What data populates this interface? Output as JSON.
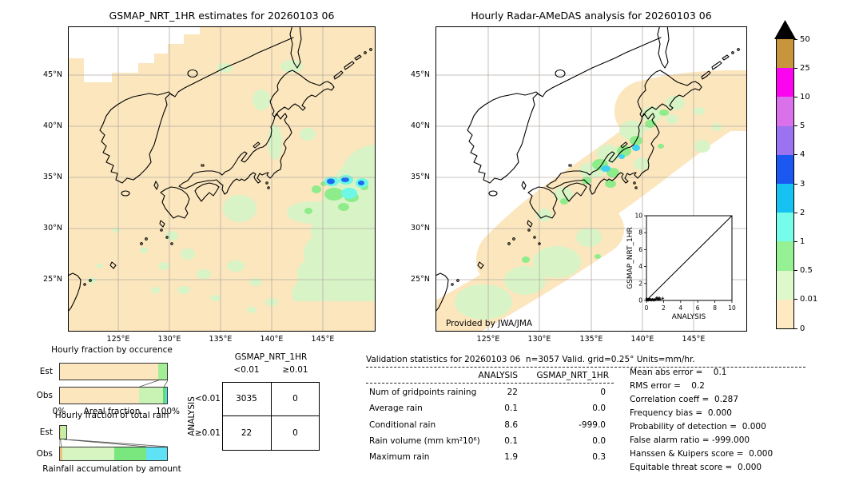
{
  "figure": {
    "provided_by": "Provided by JWA/JMA",
    "units": "mm/hr"
  },
  "chart_data": [
    {
      "id": "map_gsmap",
      "type": "map",
      "title": "GSMAP_NRT_1HR estimates for 20260103 06",
      "lon_ticks": [
        "125°E",
        "130°E",
        "135°E",
        "140°E",
        "145°E"
      ],
      "lat_ticks": [
        "45°N",
        "40°N",
        "35°N",
        "30°N",
        "25°N"
      ],
      "units": "mm/hr",
      "background_value_color": "#fbe6bd",
      "notes": "Precipitation estimate map over Japan; mostly 0–0.01 mm/hr (peach) with scattered 0.01–0.5 patches and a band of 1–4 mm/hr cells near 35N,145-147E"
    },
    {
      "id": "map_radar",
      "type": "map",
      "title": "Hourly Radar-AMeDAS analysis for 20260103 06",
      "credit": "Provided by JWA/JMA",
      "lon_ticks": [
        "125°E",
        "130°E",
        "135°E",
        "140°E",
        "145°E"
      ],
      "lat_ticks": [
        "45°N",
        "40°N",
        "35°N",
        "30°N",
        "25°N"
      ],
      "units": "mm/hr",
      "notes": "Radar analysis coverage blobs (0-0.01 peach) along Japan with 0.01-1 green cores and small 1-3 mm/hr cyan cells on the Japan Sea coast"
    },
    {
      "id": "colorbar",
      "type": "colorbar",
      "units": "mm/hr",
      "tick_labels": [
        "50",
        "25",
        "10",
        "5",
        "4",
        "3",
        "2",
        "1",
        "0.5",
        "0.01",
        "0"
      ],
      "segment_colors": [
        "#c7953c",
        "#fb04f0",
        "#da70ea",
        "#9b72ef",
        "#1b57f1",
        "#15c2f2",
        "#76fde9",
        "#95f193",
        "#ddf8ca",
        "#fdeac3"
      ],
      "overflow_arrow_color": "#000000"
    },
    {
      "id": "occurrence",
      "type": "bar",
      "title": "Hourly fraction by occurence",
      "x_left_label": "0%",
      "x_axis_label": "Areal fraction",
      "x_right_label": "100%",
      "rows": [
        {
          "label": "Est",
          "segments": [
            {
              "level": "0-0.01",
              "color": "#fbe6bd",
              "fraction": 0.915
            },
            {
              "level": "0.01-0.5",
              "color": "#a2ee95",
              "fraction": 0.085
            }
          ]
        },
        {
          "label": "Obs",
          "segments": [
            {
              "level": "0-0.01",
              "color": "#fbe6bd",
              "fraction": 0.74
            },
            {
              "level": "0.01-0.5",
              "color": "#c9f2b5",
              "fraction": 0.225
            },
            {
              "level": "0.5-1",
              "color": "#5fdd66",
              "fraction": 0.022
            },
            {
              "level": "1-2",
              "color": "#55dcf2",
              "fraction": 0.013
            }
          ]
        }
      ],
      "connectors": [
        [
          0.915,
          0.74
        ],
        [
          1.0,
          0.965
        ]
      ]
    },
    {
      "id": "totalrain",
      "type": "bar",
      "title": "Hourly fraction of total rain",
      "x_axis_label": "Rainfall accumulation by amount",
      "rows": [
        {
          "label": "Est",
          "segments": [
            {
              "level": "0-0.01",
              "color": "#eec17e",
              "fraction": 0.012
            },
            {
              "level": "0.01-0.5",
              "color": "#c3f0a5",
              "fraction": 0.062
            }
          ]
        },
        {
          "label": "Obs",
          "segments": [
            {
              "level": "0-0.01",
              "color": "#eec17e",
              "fraction": 0.02
            },
            {
              "level": "0.01-0.5",
              "color": "#d6f5c1",
              "fraction": 0.49
            },
            {
              "level": "0.5-1",
              "color": "#79e77d",
              "fraction": 0.295
            },
            {
              "level": "1-2",
              "color": "#5fe2f5",
              "fraction": 0.195
            }
          ]
        }
      ],
      "connectors": [
        [
          0.074,
          1.0
        ],
        [
          0.045,
          0.805
        ],
        [
          0.012,
          0.02
        ],
        [
          0.0,
          0.0
        ]
      ]
    },
    {
      "id": "contingency",
      "type": "table",
      "col_group": "GSMAP_NRT_1HR",
      "row_group": "ANALYSIS",
      "col_labels": [
        "<0.01",
        "≥0.01"
      ],
      "row_labels": [
        "<0.01",
        "≥0.01"
      ],
      "values": [
        [
          "3035",
          "0"
        ],
        [
          "22",
          "0"
        ]
      ]
    },
    {
      "id": "validation",
      "type": "table",
      "title": "Validation statistics for 20260103 06  n=3057 Valid. grid=0.25° Units=mm/hr.",
      "col_headers": [
        "ANALYSIS",
        "GSMAP_NRT_1HR"
      ],
      "rows": [
        {
          "label": "Num of gridpoints raining",
          "analysis": "22",
          "gsmap": "0"
        },
        {
          "label": "Average rain",
          "analysis": "0.1",
          "gsmap": "0.0"
        },
        {
          "label": "Conditional rain",
          "analysis": "8.6",
          "gsmap": "-999.0"
        },
        {
          "label": "Rain volume (mm km²10⁶)",
          "analysis": "0.1",
          "gsmap": "0.0"
        },
        {
          "label": "Maximum rain",
          "analysis": "1.9",
          "gsmap": "0.3"
        }
      ]
    },
    {
      "id": "summary",
      "type": "stats",
      "lines": [
        "Mean abs error =    0.1",
        "RMS error =    0.2",
        "Correlation coeff =  0.287",
        "Frequency bias =  0.000",
        "Probability of detection =  0.000",
        "False alarm ratio = -999.000",
        "Hanssen & Kuipers score =  0.000",
        "Equitable threat score =  0.000"
      ]
    },
    {
      "id": "inset_scatter",
      "type": "scatter",
      "x_label": "ANALYSIS",
      "y_label": "GSMAP_NRT_1HR",
      "tick_labels": [
        "0",
        "2",
        "4",
        "6",
        "8",
        "10"
      ],
      "xlim": [
        0,
        10
      ],
      "ylim": [
        0,
        10
      ],
      "diagonal_line": true,
      "points": [
        [
          0.05,
          0.05
        ],
        [
          0.1,
          0.1
        ],
        [
          0.15,
          0.05
        ],
        [
          0.2,
          0.1
        ],
        [
          0.25,
          0.05
        ],
        [
          0.3,
          0.15
        ],
        [
          0.35,
          0.2
        ],
        [
          0.4,
          0.05
        ],
        [
          0.5,
          0.1
        ],
        [
          0.6,
          0.05
        ],
        [
          0.7,
          0.1
        ],
        [
          0.8,
          0.05
        ],
        [
          0.9,
          0.1
        ],
        [
          1.0,
          0.05
        ],
        [
          1.1,
          0.15
        ],
        [
          1.2,
          0.3
        ],
        [
          1.3,
          0.25
        ],
        [
          1.4,
          0.1
        ],
        [
          1.5,
          0.3
        ],
        [
          1.6,
          0.15
        ],
        [
          1.9,
          0.25
        ],
        [
          0.05,
          0.2
        ]
      ]
    }
  ]
}
